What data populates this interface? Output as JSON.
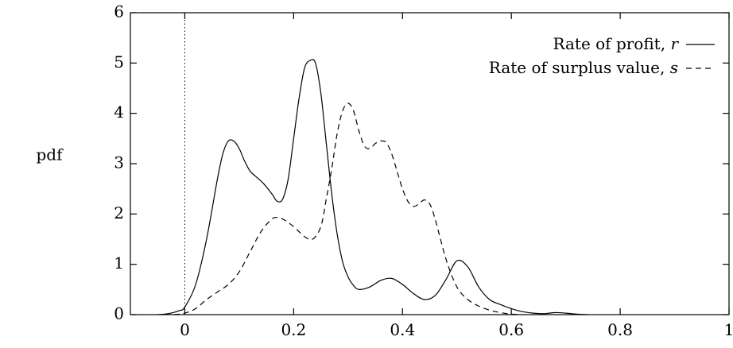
{
  "chart_data": {
    "type": "line",
    "title": "",
    "xlabel": "",
    "ylabel": "pdf",
    "xlim": [
      -0.1,
      1.0
    ],
    "ylim": [
      0,
      6
    ],
    "x_ticks": [
      0,
      0.2,
      0.4,
      0.6,
      0.8,
      1
    ],
    "x_tick_labels": [
      "0",
      "0.2",
      "0.4",
      "0.6",
      "0.8",
      "1"
    ],
    "y_ticks": [
      0,
      1,
      2,
      3,
      4,
      5,
      6
    ],
    "y_tick_labels": [
      "0",
      "1",
      "2",
      "3",
      "4",
      "5",
      "6"
    ],
    "reference_line": {
      "x": 0,
      "style": "dotted"
    },
    "legend_position": "top-right",
    "series": [
      {
        "name": "Rate of profit, ",
        "symbol": "r",
        "style": "solid",
        "x": [
          -0.05,
          -0.03,
          -0.01,
          0.0,
          0.02,
          0.04,
          0.06,
          0.07,
          0.08,
          0.09,
          0.1,
          0.11,
          0.12,
          0.13,
          0.145,
          0.16,
          0.17,
          0.18,
          0.19,
          0.2,
          0.21,
          0.22,
          0.23,
          0.24,
          0.25,
          0.26,
          0.27,
          0.28,
          0.29,
          0.3,
          0.31,
          0.32,
          0.34,
          0.36,
          0.38,
          0.4,
          0.42,
          0.44,
          0.46,
          0.48,
          0.5,
          0.52,
          0.54,
          0.56,
          0.58,
          0.6,
          0.62,
          0.64,
          0.66,
          0.68,
          0.7,
          0.72,
          0.74
        ],
        "y": [
          0.0,
          0.02,
          0.08,
          0.15,
          0.6,
          1.5,
          2.7,
          3.2,
          3.45,
          3.45,
          3.3,
          3.05,
          2.85,
          2.75,
          2.6,
          2.4,
          2.25,
          2.3,
          2.7,
          3.5,
          4.3,
          4.9,
          5.05,
          5.0,
          4.4,
          3.4,
          2.4,
          1.6,
          1.05,
          0.75,
          0.58,
          0.5,
          0.55,
          0.68,
          0.72,
          0.6,
          0.42,
          0.3,
          0.38,
          0.7,
          1.07,
          0.95,
          0.55,
          0.3,
          0.2,
          0.12,
          0.06,
          0.03,
          0.02,
          0.04,
          0.03,
          0.01,
          0.0
        ]
      },
      {
        "name": "Rate of surplus value, ",
        "symbol": "s",
        "style": "dashed",
        "x": [
          -0.02,
          0.0,
          0.02,
          0.04,
          0.06,
          0.08,
          0.1,
          0.12,
          0.14,
          0.16,
          0.17,
          0.18,
          0.2,
          0.22,
          0.235,
          0.25,
          0.26,
          0.27,
          0.28,
          0.29,
          0.3,
          0.31,
          0.32,
          0.33,
          0.34,
          0.35,
          0.36,
          0.37,
          0.38,
          0.39,
          0.4,
          0.41,
          0.42,
          0.43,
          0.44,
          0.45,
          0.46,
          0.48,
          0.5,
          0.52,
          0.54,
          0.56,
          0.58,
          0.6,
          0.62
        ],
        "y": [
          0.0,
          0.03,
          0.12,
          0.3,
          0.45,
          0.6,
          0.85,
          1.25,
          1.65,
          1.9,
          1.93,
          1.9,
          1.75,
          1.55,
          1.5,
          1.75,
          2.3,
          2.9,
          3.6,
          4.05,
          4.2,
          4.05,
          3.65,
          3.35,
          3.3,
          3.4,
          3.45,
          3.42,
          3.2,
          2.85,
          2.5,
          2.25,
          2.15,
          2.2,
          2.28,
          2.2,
          1.9,
          1.1,
          0.55,
          0.3,
          0.17,
          0.09,
          0.04,
          0.01,
          0.0
        ]
      }
    ]
  }
}
